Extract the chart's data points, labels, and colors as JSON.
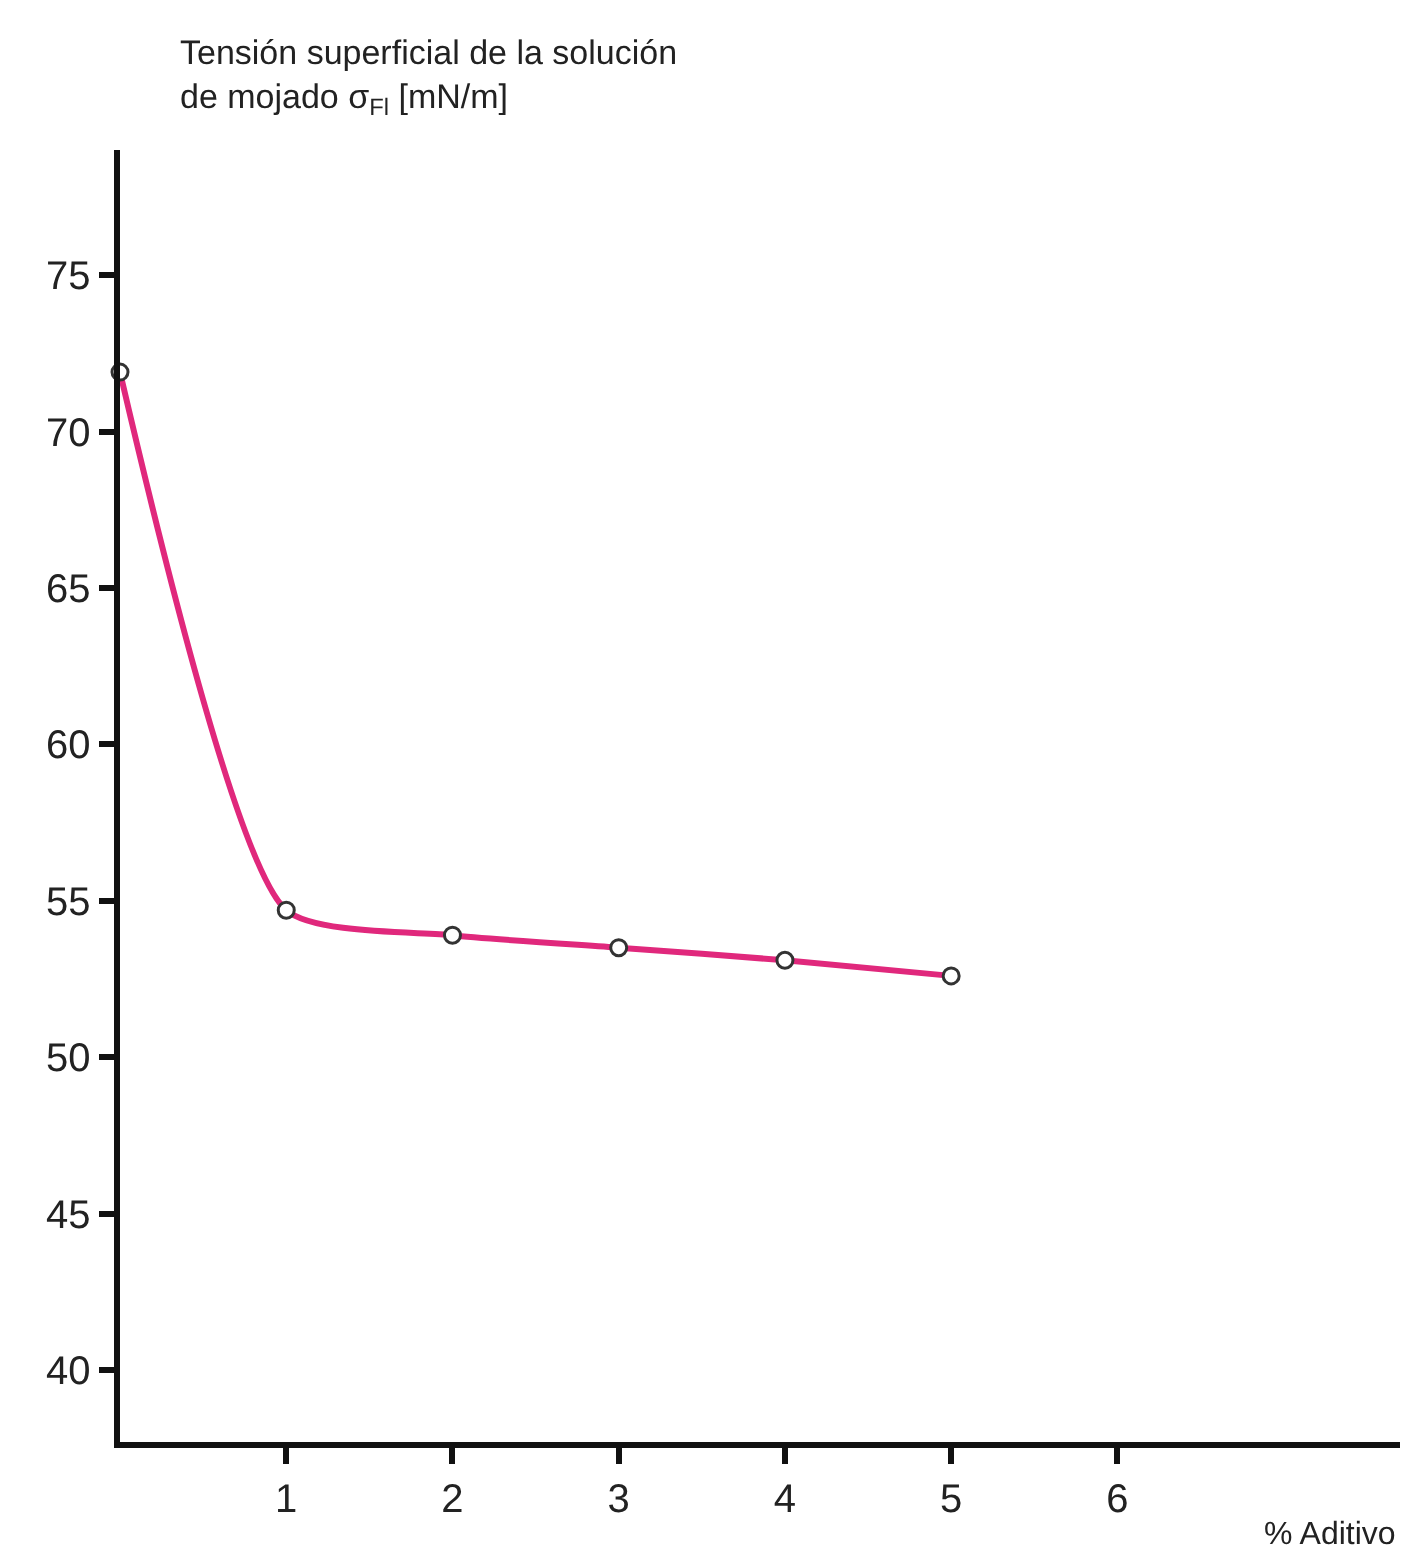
{
  "chart_data": {
    "type": "line",
    "xlabel": "% Aditivo",
    "ylabel": "Tensión superficial de la solución\nde mojado σ$_{Fl}$ [mN/m]",
    "x": [
      0,
      1,
      2,
      3,
      4,
      5
    ],
    "series": [
      {
        "color": "#e0287c",
        "values": [
          71.9,
          54.7,
          53.9,
          53.5,
          53.1,
          52.6
        ]
      }
    ],
    "xlim": [
      0,
      7.7
    ],
    "xticks": [
      1,
      2,
      3,
      4,
      5,
      6
    ],
    "ylim": [
      37.7,
      79
    ],
    "yticks": [
      40,
      45,
      50,
      55,
      60,
      65,
      70,
      75
    ],
    "marker": "circle",
    "line_style": "solid"
  }
}
